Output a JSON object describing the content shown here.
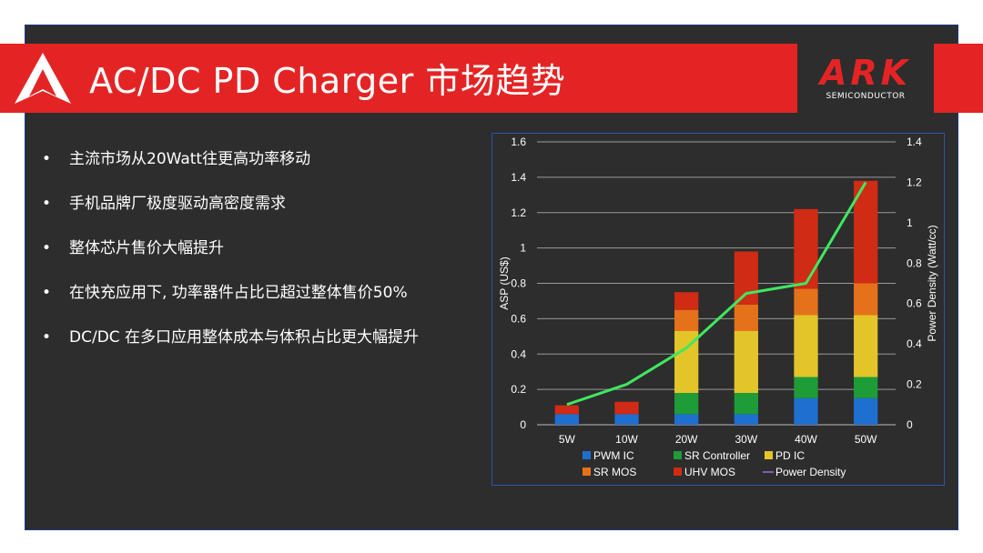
{
  "header": {
    "title": "AC/DC PD Charger 市场趋势",
    "brand_name": "ARK",
    "brand_sub": "SEMICONDUCTOR"
  },
  "bullets": [
    "主流市场从20Watt往更高功率移动",
    "手机品牌厂极度驱动高密度需求",
    "整体芯片售价大幅提升",
    "在快充应用下, 功率器件占比已超过整体售价50%",
    "DC/DC 在多口应用整体成本与体积占比更大幅提升"
  ],
  "bullet_symbol": "•",
  "colors": {
    "title_bar": "#e42424",
    "slide_bg": "#2d2d2d",
    "pwm_ic": "#1f6fd0",
    "sr_controller": "#1e9c38",
    "pd_ic": "#e3c52a",
    "sr_mos": "#e5711b",
    "uhv_mos": "#cf2b15",
    "power_density": "#3fe860"
  },
  "chart_data": {
    "type": "bar",
    "stacked": true,
    "categories": [
      "5W",
      "10W",
      "20W",
      "30W",
      "40W",
      "50W"
    ],
    "ylabel": "ASP (US$)",
    "y2label": "Power Density (Watt/cc)",
    "ylim": [
      0,
      1.6
    ],
    "y_ticks": [
      "0",
      "0.2",
      "0.4",
      "0.6",
      "0.8",
      "1",
      "1.2",
      "1.4",
      "1.6"
    ],
    "y2lim": [
      0,
      1.4
    ],
    "y2_ticks": [
      "0",
      "0.2",
      "0.4",
      "0.6",
      "0.8",
      "1",
      "1.2",
      "1.4"
    ],
    "grid": true,
    "legend_position": "bottom",
    "series": [
      {
        "name": "PWM IC",
        "color": "#1f6fd0",
        "values": [
          0.06,
          0.06,
          0.06,
          0.06,
          0.15,
          0.15
        ]
      },
      {
        "name": "SR Controller",
        "color": "#1e9c38",
        "values": [
          0,
          0,
          0.12,
          0.12,
          0.12,
          0.12
        ]
      },
      {
        "name": "PD IC",
        "color": "#e3c52a",
        "values": [
          0,
          0,
          0.35,
          0.35,
          0.35,
          0.35
        ]
      },
      {
        "name": "SR MOS",
        "color": "#e5711b",
        "values": [
          0,
          0,
          0.12,
          0.15,
          0.15,
          0.18
        ]
      },
      {
        "name": "UHV MOS",
        "color": "#cf2b15",
        "values": [
          0.05,
          0.07,
          0.1,
          0.3,
          0.45,
          0.58
        ]
      }
    ],
    "line_series": {
      "name": "Power Density",
      "axis": "right",
      "color": "#3fe860",
      "values": [
        0.1,
        0.2,
        0.38,
        0.65,
        0.7,
        1.2
      ]
    }
  }
}
